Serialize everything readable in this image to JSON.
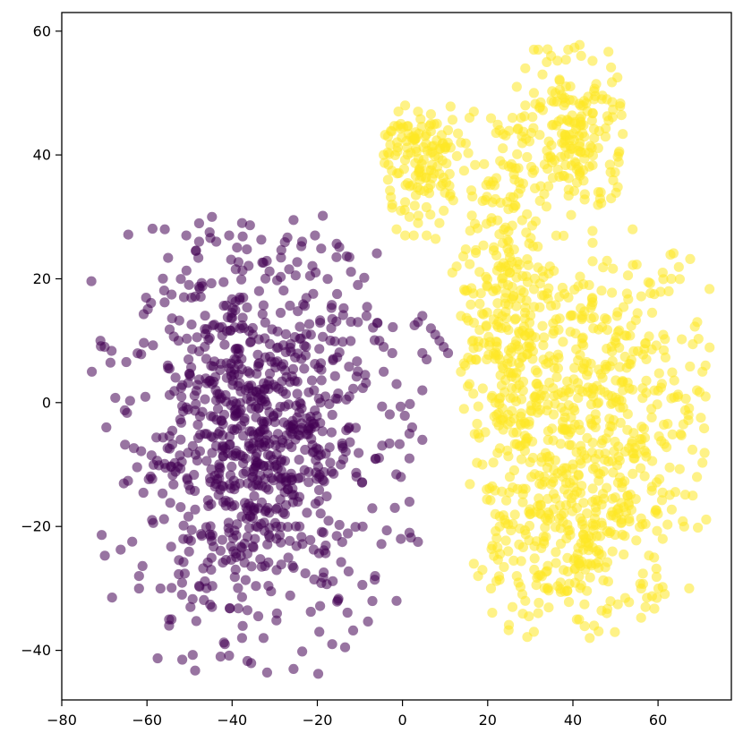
{
  "chart_data": {
    "type": "scatter",
    "title": "",
    "xlabel": "",
    "ylabel": "",
    "xlim": [
      -80,
      76
    ],
    "ylim": [
      -48,
      63
    ],
    "x_ticks": [
      -80,
      -60,
      -40,
      -20,
      0,
      20,
      40,
      60
    ],
    "y_ticks": [
      -40,
      -20,
      0,
      20,
      40,
      60
    ],
    "x_tick_labels": [
      "−80",
      "−60",
      "−40",
      "−20",
      "0",
      "20",
      "40",
      "60"
    ],
    "y_tick_labels": [
      "−40",
      "−20",
      "0",
      "20",
      "40",
      "60"
    ],
    "grid": false,
    "legend": "none",
    "marker_alpha": 0.55,
    "series": [
      {
        "color": "#440154",
        "clusters": [
          {
            "center": [
              -35,
              -5
            ],
            "spread": [
              14,
              15
            ],
            "count": 900,
            "clip_x": [
              -75,
              3
            ],
            "clip_y": [
              -44,
              31
            ]
          }
        ],
        "points": [
          [
            -73,
            5
          ],
          [
            -71,
            10
          ],
          [
            -70,
            9
          ],
          [
            -45,
            30
          ],
          [
            -38,
            29
          ],
          [
            -26,
            29.5
          ],
          [
            -24,
            26
          ],
          [
            -21,
            27
          ],
          [
            -16,
            23.5
          ],
          [
            -13,
            23.5
          ],
          [
            -11,
            19
          ],
          [
            -56,
            28
          ],
          [
            -51,
            27
          ],
          [
            -48,
            26
          ],
          [
            -44,
            26
          ],
          [
            -41,
            27
          ],
          [
            -26,
            -43
          ],
          [
            -43,
            -41
          ],
          [
            -42,
            -39
          ],
          [
            -38,
            -38
          ],
          [
            -33,
            -38
          ],
          [
            -17,
            -39
          ],
          [
            -14,
            -39.5
          ],
          [
            -20,
            -37
          ],
          [
            -55,
            -36
          ],
          [
            -55,
            -35
          ],
          [
            -62,
            -30
          ],
          [
            -62,
            -28
          ],
          [
            -57,
            -30
          ],
          [
            -52,
            -31
          ],
          [
            -50,
            -33
          ],
          [
            -45,
            -33
          ],
          [
            -1,
            -22
          ],
          [
            -2,
            -32
          ],
          [
            -7,
            -28
          ],
          [
            1,
            -21
          ],
          [
            1,
            -16
          ],
          [
            -1,
            -12
          ],
          [
            1,
            -9
          ],
          [
            1,
            -5
          ],
          [
            4,
            -6
          ],
          [
            3,
            13
          ],
          [
            4,
            14
          ],
          [
            6,
            12
          ],
          [
            7,
            11
          ],
          [
            8,
            10
          ],
          [
            9,
            9
          ],
          [
            10,
            8
          ],
          [
            4,
            8
          ],
          [
            5,
            7
          ],
          [
            -11,
            13
          ],
          [
            -9,
            14
          ],
          [
            -6,
            10
          ],
          [
            -5,
            9
          ],
          [
            -3,
            8
          ],
          [
            -2,
            3
          ],
          [
            4,
            2
          ],
          [
            -5,
            5
          ],
          [
            -30,
            -20
          ],
          [
            -28,
            -18
          ],
          [
            -25,
            -16
          ],
          [
            -32,
            -17
          ],
          [
            -35,
            -22
          ],
          [
            -40,
            -24
          ],
          [
            -20,
            -12
          ],
          [
            -15,
            -10
          ]
        ]
      },
      {
        "color": "#fde725",
        "clusters": [
          {
            "center": [
              40,
              -22
            ],
            "spread": [
              12,
              8
            ],
            "count": 260,
            "clip_x": [
              20,
              70
            ],
            "clip_y": [
              -38,
              -4
            ]
          },
          {
            "center": [
              42,
              0
            ],
            "spread": [
              15,
              13
            ],
            "count": 520,
            "clip_x": [
              14,
              71
            ],
            "clip_y": [
              -22,
              28
            ]
          },
          {
            "center": [
              22,
              15
            ],
            "spread": [
              6,
              12
            ],
            "count": 160,
            "clip_x": [
              13,
              33
            ],
            "clip_y": [
              -5,
              30
            ]
          },
          {
            "center": [
              4,
              39
            ],
            "spread": [
              5,
              5
            ],
            "count": 130,
            "clip_x": [
              -5,
              15
            ],
            "clip_y": [
              26,
              48
            ]
          },
          {
            "center": [
              40,
              43
            ],
            "spread": [
              6,
              7
            ],
            "count": 170,
            "clip_x": [
              27,
              51
            ],
            "clip_y": [
              30,
              58
            ]
          },
          {
            "center": [
              24,
              36
            ],
            "spread": [
              5,
              7
            ],
            "count": 70,
            "clip_x": [
              15,
              33
            ],
            "clip_y": [
              22,
              50
            ]
          }
        ],
        "points": [
          [
            30,
            57
          ],
          [
            31,
            57
          ],
          [
            34,
            56
          ],
          [
            38,
            57
          ],
          [
            41,
            56
          ],
          [
            33,
            55
          ],
          [
            28,
            54
          ],
          [
            26,
            51
          ],
          [
            36,
            52
          ],
          [
            44,
            49
          ],
          [
            47,
            49
          ],
          [
            45,
            34
          ],
          [
            48,
            33
          ],
          [
            53,
            28
          ],
          [
            60,
            21
          ],
          [
            62,
            20
          ],
          [
            70,
            6
          ],
          [
            70,
            1
          ],
          [
            68,
            2
          ],
          [
            66,
            -2
          ],
          [
            68,
            -12
          ],
          [
            67,
            -15
          ],
          [
            65,
            -20
          ],
          [
            60,
            -22
          ],
          [
            58,
            -25
          ],
          [
            59,
            -30
          ],
          [
            55,
            -30
          ],
          [
            56,
            -33
          ],
          [
            47,
            -34
          ],
          [
            44,
            -36
          ],
          [
            43,
            -38
          ],
          [
            40,
            -35
          ],
          [
            30,
            -37
          ],
          [
            25,
            -33
          ],
          [
            20,
            -30
          ],
          [
            17,
            -28
          ],
          [
            18,
            -27
          ],
          [
            16,
            -26
          ],
          [
            14,
            6
          ],
          [
            13,
            5
          ],
          [
            15,
            3
          ],
          [
            13,
            14
          ],
          [
            11,
            21
          ],
          [
            12,
            22
          ],
          [
            17,
            9
          ],
          [
            19,
            7
          ],
          [
            22,
            7
          ],
          [
            21,
            0
          ],
          [
            17,
            -5
          ],
          [
            18,
            -10
          ],
          [
            19,
            -14
          ],
          [
            21,
            -18
          ],
          [
            22,
            -20
          ],
          [
            24,
            -24
          ],
          [
            26,
            -28
          ],
          [
            28,
            -32
          ],
          [
            31,
            -34
          ],
          [
            -3,
            32
          ],
          [
            -1,
            31
          ],
          [
            1,
            30
          ],
          [
            0,
            27
          ],
          [
            -2,
            28
          ],
          [
            2,
            27
          ],
          [
            3,
            29
          ],
          [
            5,
            27
          ],
          [
            8,
            29
          ],
          [
            9,
            31
          ],
          [
            -4,
            36
          ],
          [
            -5,
            40
          ],
          [
            -4,
            43
          ],
          [
            -1,
            45
          ],
          [
            0,
            48
          ],
          [
            3,
            47
          ],
          [
            6,
            45
          ],
          [
            10,
            44
          ],
          [
            13,
            42
          ],
          [
            15,
            46
          ],
          [
            16,
            47
          ],
          [
            22,
            44
          ],
          [
            25,
            46
          ],
          [
            28,
            48
          ],
          [
            30,
            50
          ],
          [
            32,
            53
          ],
          [
            35,
            50
          ],
          [
            37,
            48
          ]
        ]
      }
    ]
  }
}
